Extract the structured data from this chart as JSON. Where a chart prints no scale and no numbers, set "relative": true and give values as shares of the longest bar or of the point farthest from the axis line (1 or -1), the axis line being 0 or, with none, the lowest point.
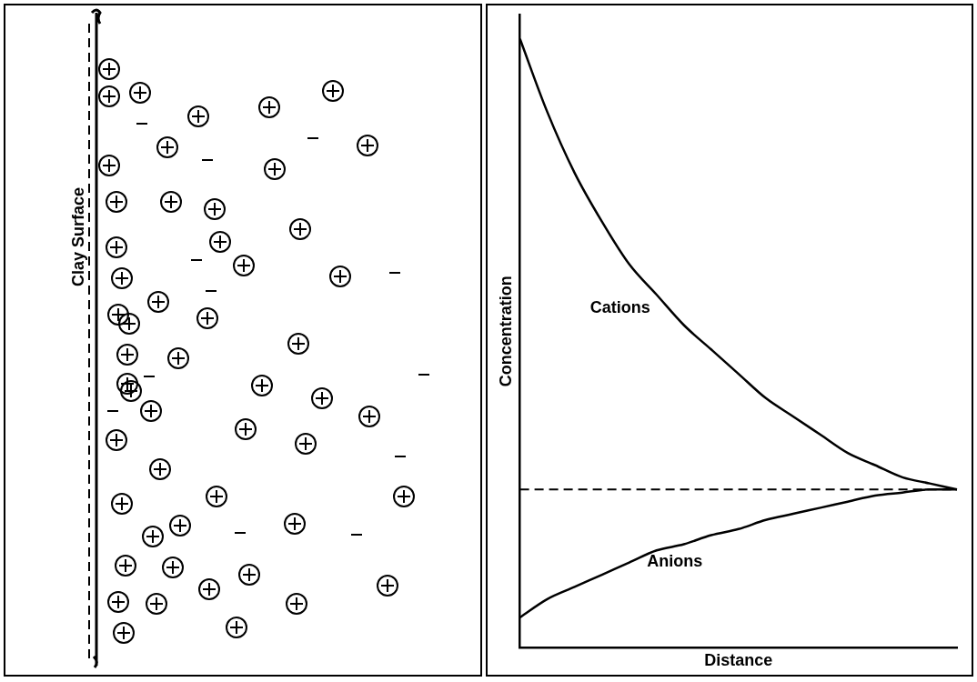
{
  "chart_data": [
    {
      "type": "other",
      "annotations": [
        "Clay Surface"
      ]
    },
    {
      "type": "line",
      "relative": true,
      "xlabel": "Distance",
      "ylabel": "Concentration",
      "legend": false,
      "grid": false,
      "marker": "none",
      "categories": [
        null,
        null,
        null,
        null,
        null,
        null,
        null,
        null,
        null,
        null,
        null,
        null,
        null,
        null,
        null,
        null,
        null
      ],
      "series": [
        {
          "name": "Cations",
          "color": "#000000",
          "values": [
            1.0,
            0.88,
            0.78,
            0.7,
            0.63,
            0.58,
            0.53,
            0.49,
            0.45,
            0.41,
            0.38,
            0.35,
            0.32,
            0.3,
            0.28,
            0.27,
            0.26
          ]
        },
        {
          "name": "Anions",
          "color": "#000000",
          "values": [
            0.05,
            0.08,
            0.1,
            0.12,
            0.14,
            0.16,
            0.17,
            0.185,
            0.195,
            0.21,
            0.22,
            0.23,
            0.24,
            0.25,
            0.255,
            0.26,
            0.26
          ]
        }
      ],
      "ref_lines": [
        {
          "axis": "y",
          "value": 0.26,
          "color": "#000000",
          "line_style": "dashed"
        }
      ]
    }
  ]
}
